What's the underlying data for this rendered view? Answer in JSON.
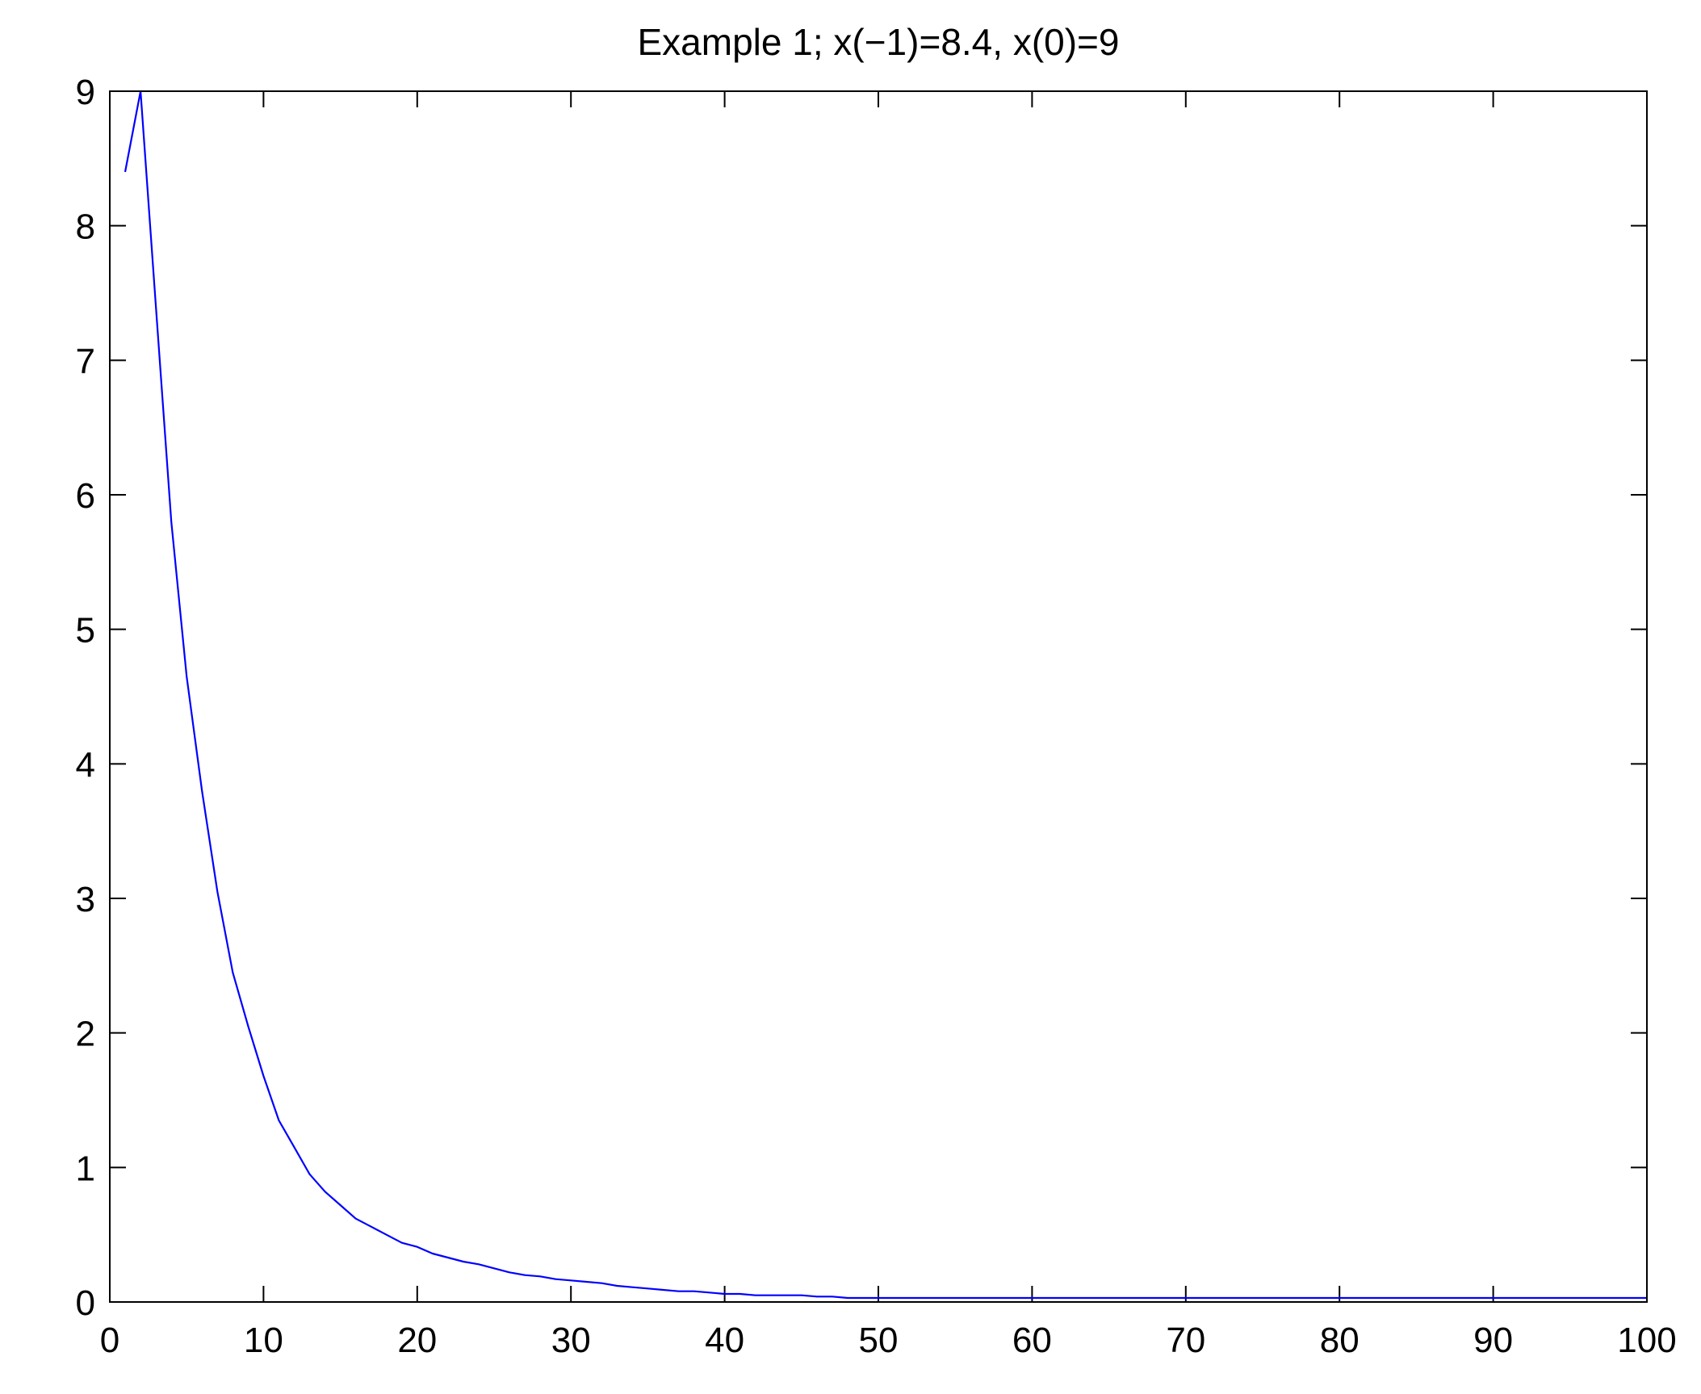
{
  "chart_data": {
    "type": "line",
    "title": "Example 1; x(−1)=8.4, x(0)=9",
    "xlabel": "",
    "ylabel": "",
    "xlim": [
      0,
      100
    ],
    "ylim": [
      0,
      9
    ],
    "x_ticks": [
      0,
      10,
      20,
      30,
      40,
      50,
      60,
      70,
      80,
      90,
      100
    ],
    "x_tick_labels": [
      "0",
      "10",
      "20",
      "30",
      "40",
      "50",
      "60",
      "70",
      "80",
      "90",
      "100"
    ],
    "y_ticks": [
      0,
      1,
      2,
      3,
      4,
      5,
      6,
      7,
      8,
      9
    ],
    "y_tick_labels": [
      "0",
      "1",
      "2",
      "3",
      "4",
      "5",
      "6",
      "7",
      "8",
      "9"
    ],
    "grid": false,
    "legend": "none",
    "series": [
      {
        "color": "#0000ff",
        "x": [
          1,
          2,
          3,
          4,
          5,
          6,
          7,
          8,
          9,
          10,
          11,
          12,
          13,
          14,
          15,
          16,
          17,
          18,
          19,
          20,
          21,
          22,
          23,
          24,
          25,
          26,
          27,
          28,
          29,
          30,
          31,
          32,
          33,
          34,
          35,
          36,
          37,
          38,
          39,
          40,
          41,
          42,
          43,
          44,
          45,
          46,
          47,
          48,
          49,
          50,
          55,
          60,
          65,
          70,
          75,
          80,
          85,
          90,
          95,
          100
        ],
        "values": [
          8.4,
          9.0,
          7.4,
          5.8,
          4.65,
          3.8,
          3.05,
          2.45,
          2.05,
          1.68,
          1.35,
          1.15,
          0.95,
          0.82,
          0.72,
          0.62,
          0.56,
          0.5,
          0.44,
          0.41,
          0.36,
          0.33,
          0.3,
          0.28,
          0.25,
          0.22,
          0.2,
          0.19,
          0.17,
          0.16,
          0.15,
          0.14,
          0.12,
          0.11,
          0.1,
          0.09,
          0.08,
          0.08,
          0.07,
          0.06,
          0.06,
          0.05,
          0.05,
          0.05,
          0.05,
          0.04,
          0.04,
          0.03,
          0.03,
          0.03,
          0.03,
          0.03,
          0.03,
          0.03,
          0.03,
          0.03,
          0.03,
          0.03,
          0.03,
          0.03
        ]
      }
    ]
  }
}
